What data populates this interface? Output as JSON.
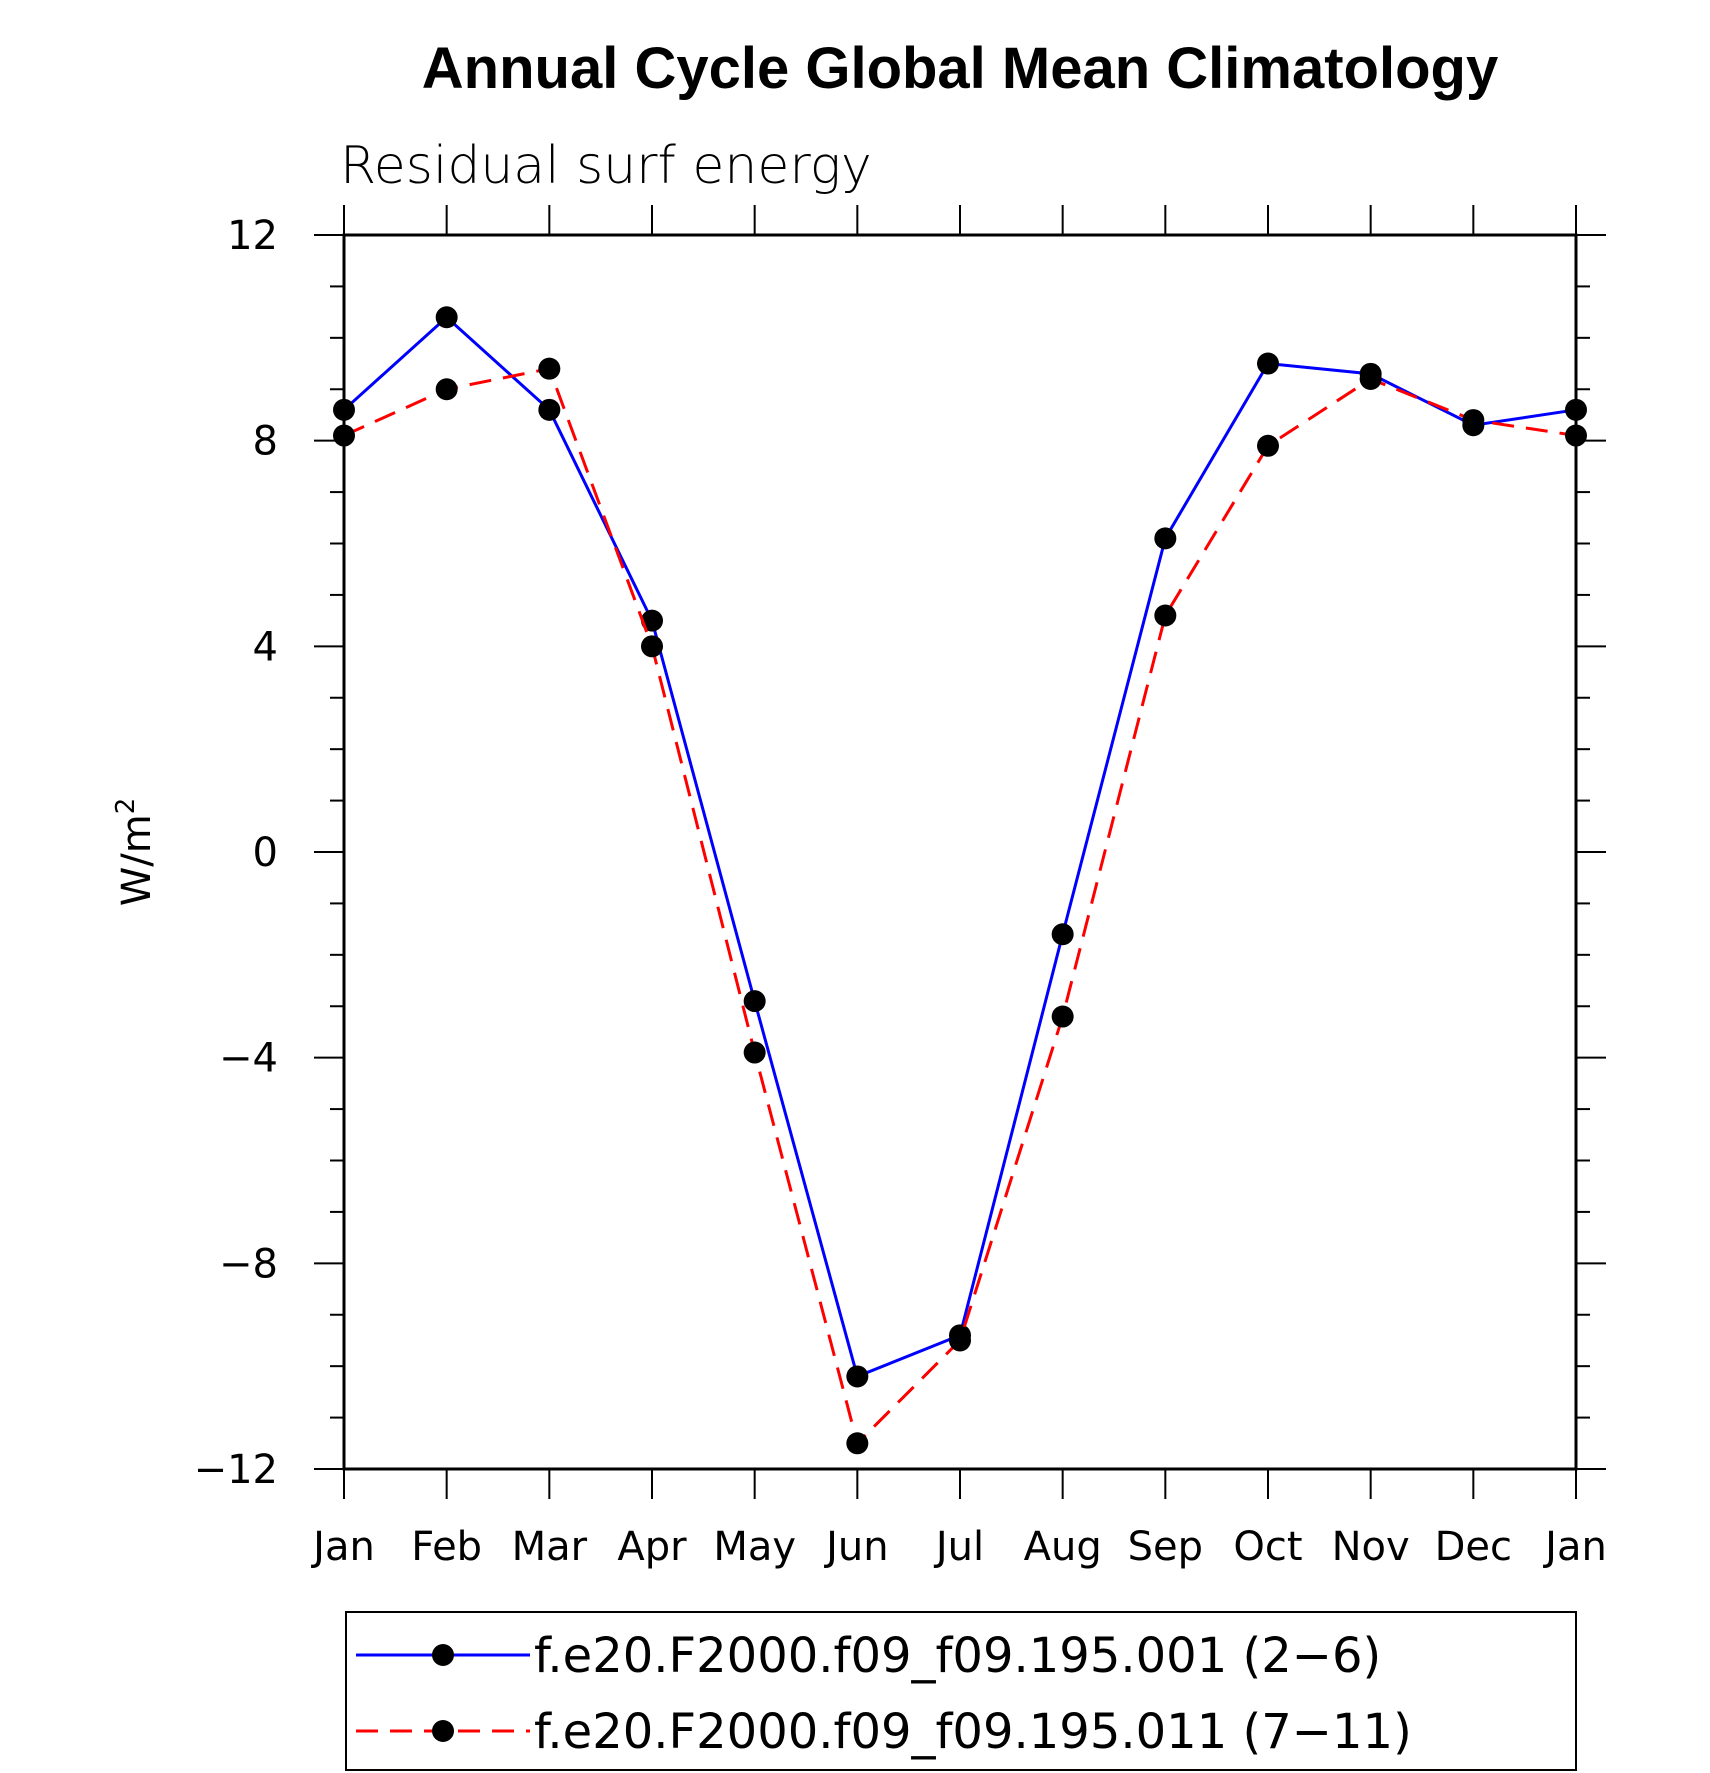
{
  "chart_data": {
    "type": "line",
    "title": "Annual Cycle Global Mean Climatology",
    "subtitle": "Residual surf energy",
    "xlabel": "",
    "ylabel": "W/m",
    "ylabel_superscript": "2",
    "categories": [
      "Jan",
      "Feb",
      "Mar",
      "Apr",
      "May",
      "Jun",
      "Jul",
      "Aug",
      "Sep",
      "Oct",
      "Nov",
      "Dec",
      "Jan"
    ],
    "ylim": [
      -12,
      12
    ],
    "yticks": [
      12,
      8,
      4,
      0,
      -4,
      -8,
      -12
    ],
    "ytick_labels": [
      "12",
      "8",
      "4",
      "0",
      "−4",
      "−8",
      "−12"
    ],
    "grid": false,
    "legend_position": "bottom",
    "series": [
      {
        "name": "f.e20.F2000.f09_f09.195.001 (2−6)",
        "color": "#0000ff",
        "dash": "solid",
        "marker_color": "#000000",
        "values": [
          8.6,
          10.4,
          8.6,
          4.5,
          -2.9,
          -10.2,
          -9.4,
          -1.6,
          6.1,
          9.5,
          9.3,
          8.3,
          8.6
        ]
      },
      {
        "name": "f.e20.F2000.f09_f09.195.011 (7−11)",
        "color": "#ff0000",
        "dash": "dashed",
        "marker_color": "#000000",
        "values": [
          8.1,
          9.0,
          9.4,
          4.0,
          -3.9,
          -11.5,
          -9.5,
          -3.2,
          4.6,
          7.9,
          9.2,
          8.4,
          8.1
        ]
      }
    ]
  }
}
